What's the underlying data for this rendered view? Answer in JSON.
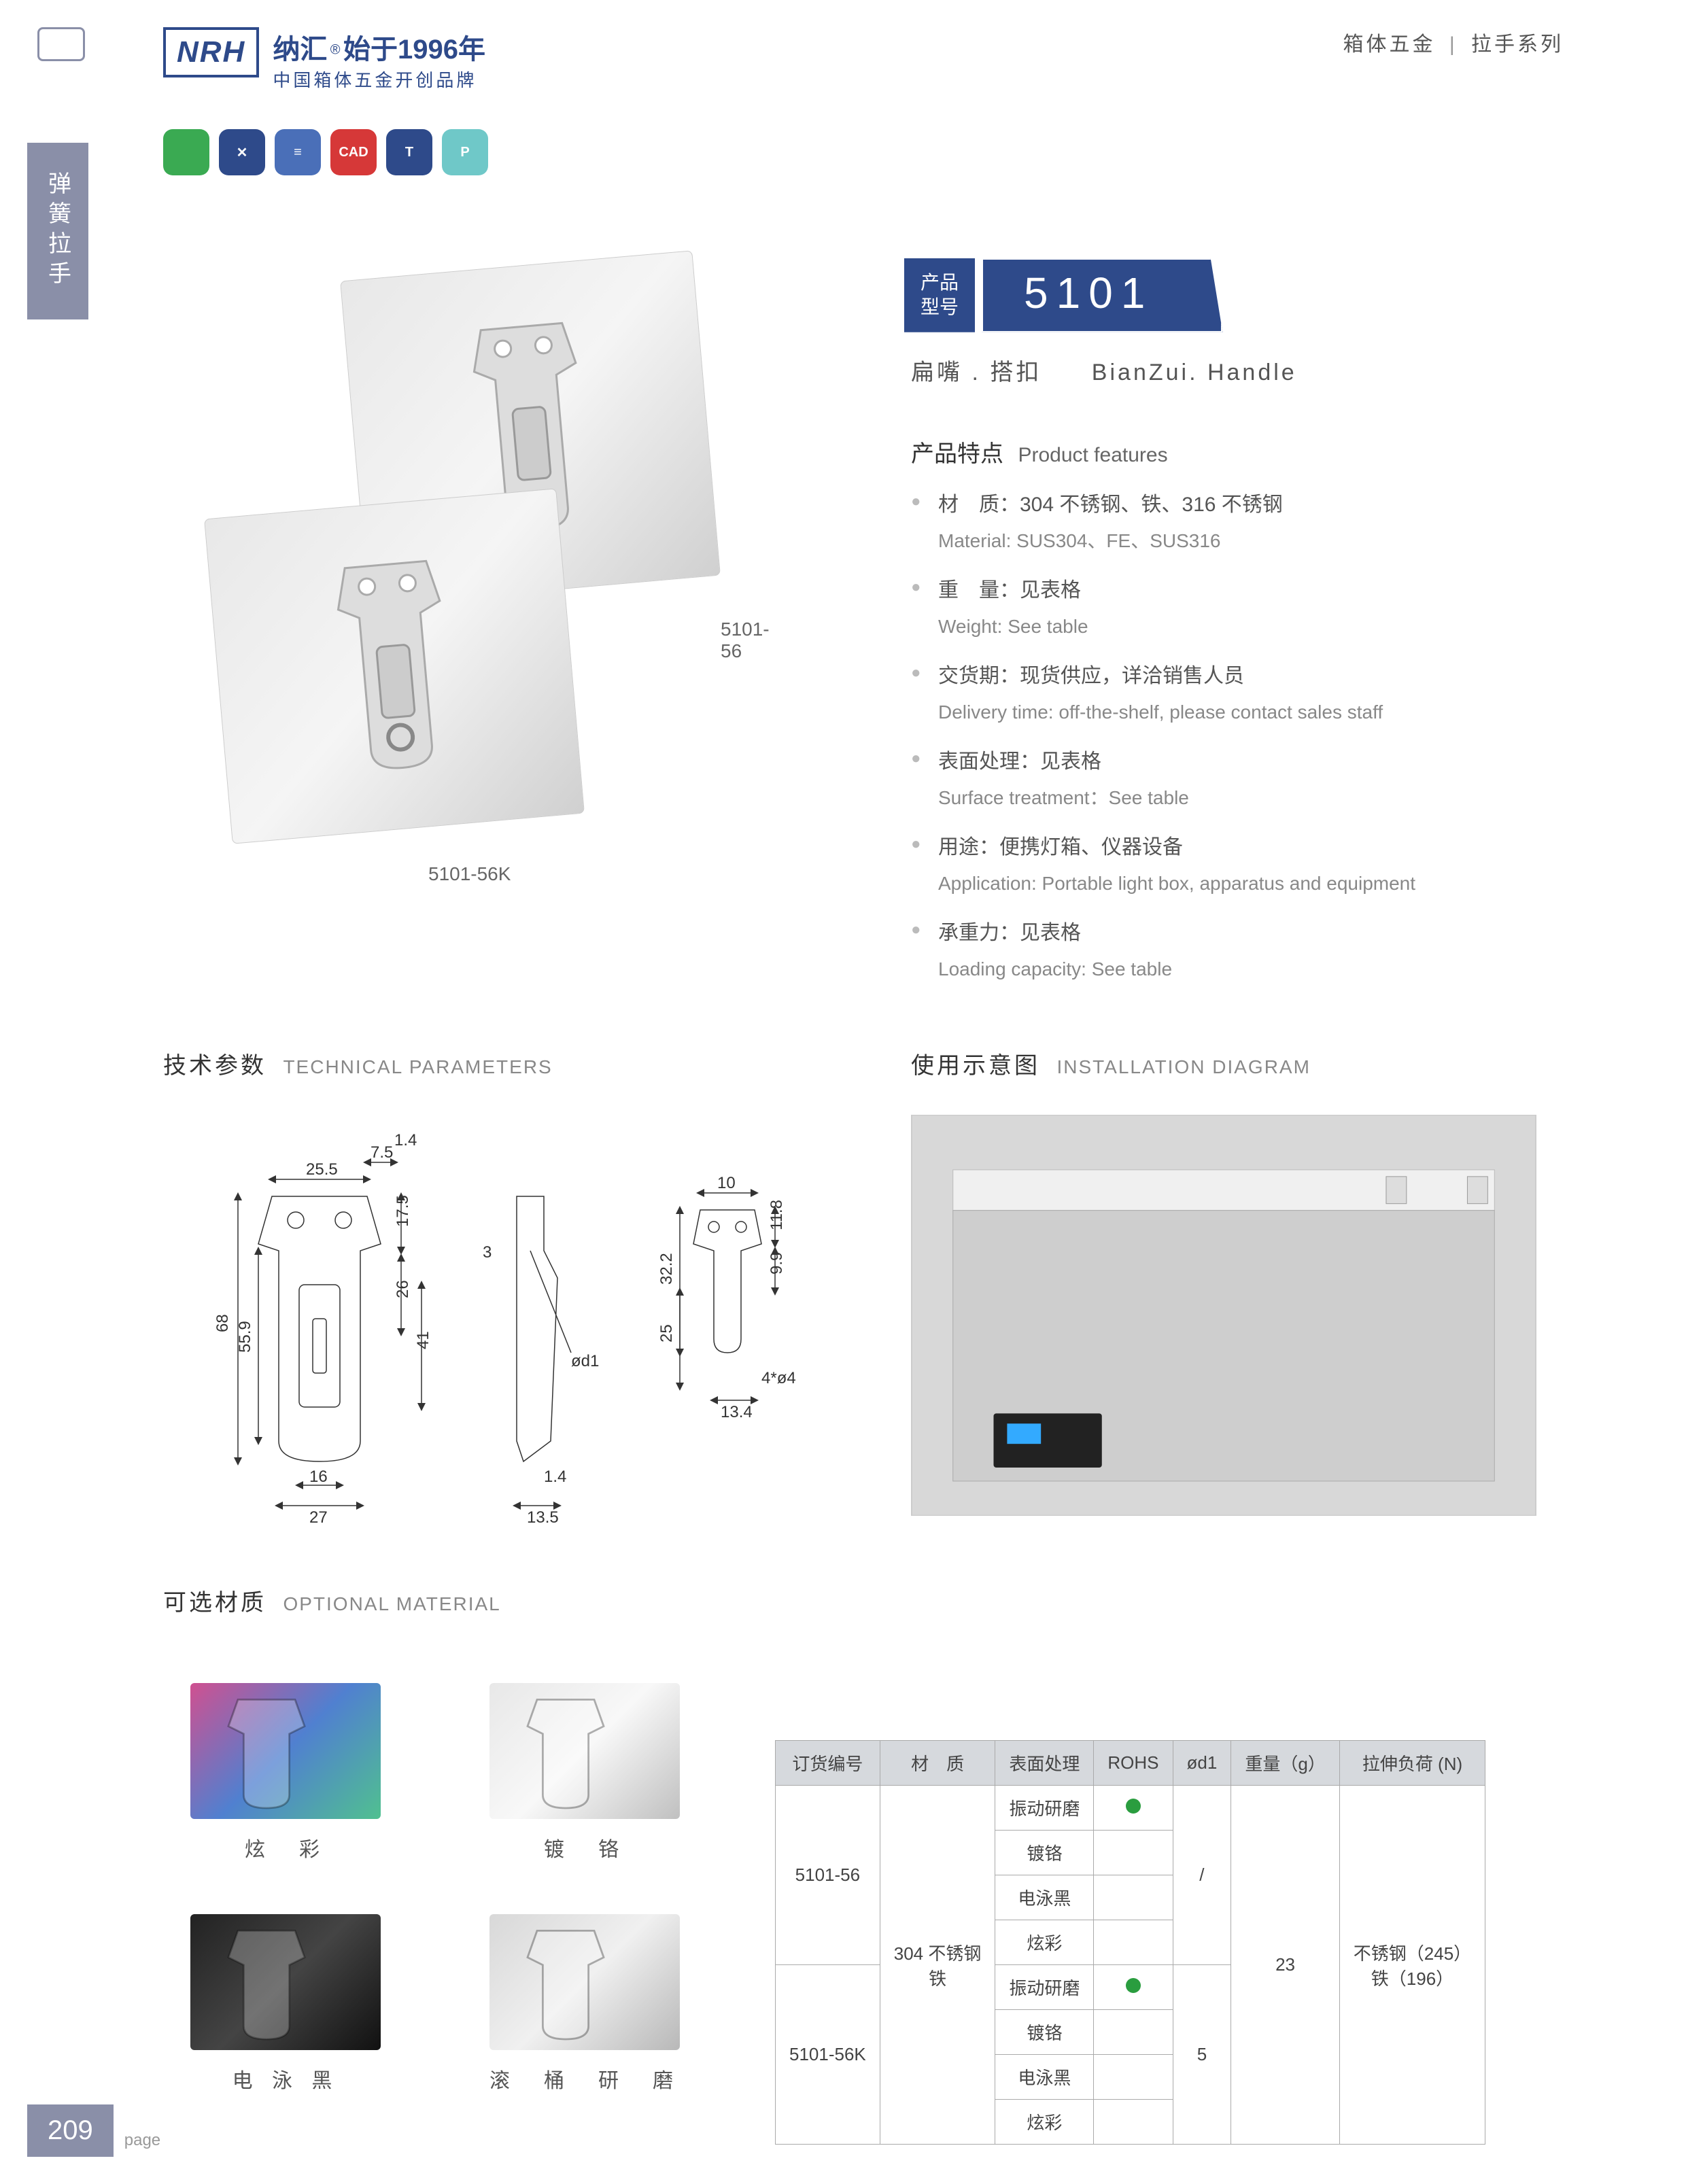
{
  "header": {
    "logo": "NRH",
    "brand_cn": "纳汇",
    "brand_year": "始于1996年",
    "brand_sub": "中国箱体五金开创品牌",
    "category_cn": "箱体五金",
    "category_series": "拉手系列"
  },
  "side_tab": "弹簧拉手",
  "icons": [
    {
      "color": "#3aaa52",
      "label": ""
    },
    {
      "color": "#2e4a8a",
      "label": "✕"
    },
    {
      "color": "#4a6fb8",
      "label": "≡"
    },
    {
      "color": "#d63838",
      "label": "CAD"
    },
    {
      "color": "#2e4a8a",
      "label": "T"
    },
    {
      "color": "#6fc8c8",
      "label": "P"
    }
  ],
  "product": {
    "badge_label": "产品\n型号",
    "model": "5101",
    "name_cn": "扁嘴 . 搭扣",
    "name_en": "BianZui. Handle",
    "img_labels": [
      "5101-56",
      "5101-56K"
    ]
  },
  "features": {
    "title_cn": "产品特点",
    "title_en": "Product features",
    "items": [
      {
        "cn": "材　质：304 不锈钢、铁、316 不锈钢",
        "en": "Material: SUS304、FE、SUS316"
      },
      {
        "cn": "重　量：见表格",
        "en": "Weight: See table"
      },
      {
        "cn": "交货期：现货供应，详洽销售人员",
        "en": "Delivery time: off-the-shelf, please contact sales staff"
      },
      {
        "cn": "表面处理：见表格",
        "en": "Surface treatment：See table"
      },
      {
        "cn": "用途：便携灯箱、仪器设备",
        "en": "Application: Portable light box, apparatus and equipment"
      },
      {
        "cn": "承重力：见表格",
        "en": "Loading capacity: See table"
      }
    ]
  },
  "tech_params": {
    "title_cn": "技术参数",
    "title_en": "TECHNICAL PARAMETERS"
  },
  "install": {
    "title_cn": "使用示意图",
    "title_en": "INSTALLATION DIAGRAM"
  },
  "optional": {
    "title_cn": "可选材质",
    "title_en": "OPTIONAL MATERIAL"
  },
  "dimensions": {
    "view1": {
      "w_top": "25.5",
      "w_offset": "7.5",
      "t": "1.4",
      "h_total": "68",
      "h_body": "55.9",
      "h_top": "17.5",
      "h_mid": "26",
      "h_bottom": "41",
      "w_slot": "16",
      "w_base": "27"
    },
    "view2": {
      "t1": "3",
      "t2": "1.4",
      "w": "13.5",
      "hole": "ød1"
    },
    "view3": {
      "w_top": "10",
      "h_top": "11.8",
      "h_total": "32.2",
      "h_mid": "9.9",
      "h_bottom": "25",
      "w_base": "13.4",
      "holes": "4*ø4"
    }
  },
  "materials": [
    {
      "label": "炫　彩",
      "gradient": "linear-gradient(135deg,#d05090,#5080d0,#50c090)"
    },
    {
      "label": "镀　铬",
      "gradient": "linear-gradient(135deg,#e8e8e8,#f8f8f8,#c0c0c0)"
    },
    {
      "label": "电 泳 黑",
      "gradient": "linear-gradient(135deg,#222,#444,#111)"
    },
    {
      "label": "滚　桶　研　磨",
      "gradient": "linear-gradient(135deg,#d8d8d8,#f0f0f0,#b8b8b8)"
    }
  ],
  "table": {
    "headers": [
      "订货编号",
      "材　质",
      "表面处理",
      "ROHS",
      "ød1",
      "重量（g）",
      "拉伸负荷 (N)"
    ],
    "order_codes": [
      "5101-56",
      "5101-56K"
    ],
    "material": "304 不锈钢\n铁",
    "treatments": [
      "振动研磨",
      "镀铬",
      "电泳黑",
      "炫彩",
      "振动研磨",
      "镀铬",
      "电泳黑",
      "炫彩"
    ],
    "rohs": [
      true,
      false,
      false,
      false,
      true,
      false,
      false,
      false
    ],
    "od1": [
      "/",
      "5"
    ],
    "weight": "23",
    "load": "不锈钢（245）\n铁（196）"
  },
  "footer": {
    "page": "209",
    "label": "page"
  }
}
